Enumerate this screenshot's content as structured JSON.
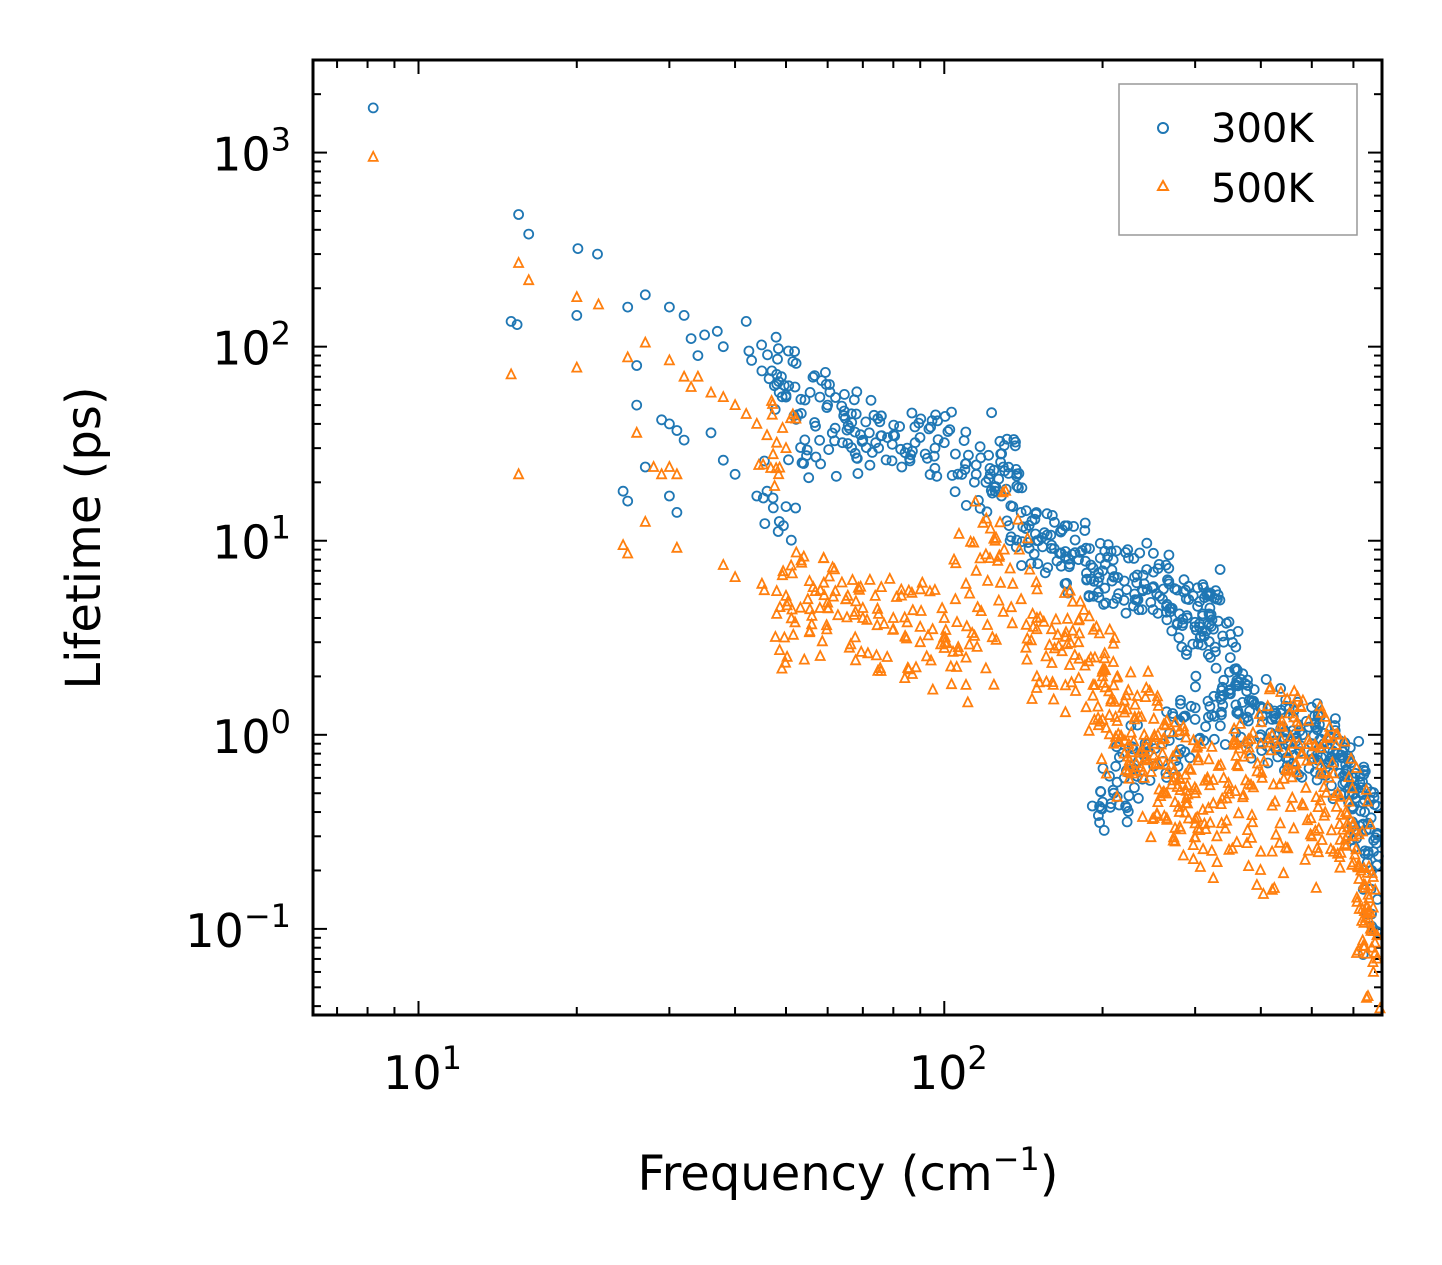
{
  "chart_data": {
    "type": "scatter",
    "title": "",
    "xlabel": "Frequency (cm",
    "xlabel_sup": "−1",
    "xlabel_suffix": ")",
    "ylabel": "Lifetime (ps)",
    "xscale": "log",
    "yscale": "log",
    "xlim": [
      6.3,
      680
    ],
    "ylim": [
      0.036,
      3000
    ],
    "x_ticks": [
      {
        "base": "10",
        "exp": "1",
        "value": 10
      },
      {
        "base": "10",
        "exp": "2",
        "value": 100
      }
    ],
    "y_ticks": [
      {
        "base": "10",
        "exp": "3",
        "value": 1000
      },
      {
        "base": "10",
        "exp": "2",
        "value": 100
      },
      {
        "base": "10",
        "exp": "1",
        "value": 10
      },
      {
        "base": "10",
        "exp": "0",
        "value": 1
      },
      {
        "base": "10",
        "exp": "−1",
        "value": 0.1
      }
    ],
    "legend_position": "top-right",
    "series": [
      {
        "name": "300K",
        "marker": "circle",
        "color": "#1f77b4",
        "x": [
          8.2,
          15.5,
          16.2,
          15.0,
          15.4,
          20.1,
          21.9,
          20.0,
          27.0,
          25.0,
          26.0,
          30.0,
          32.0,
          33.0,
          34.0,
          35.0,
          37.0,
          38.0,
          42.0,
          42.5,
          43.0,
          45.0,
          47.0,
          48.0,
          49.0,
          50.0,
          52.0,
          26.0,
          29.0,
          30.0,
          31.0,
          32.0,
          24.5,
          25.0,
          27.0,
          30.0,
          31.0,
          36.0,
          38.0,
          40.0,
          44.0,
          46.0,
          50.0,
          54.0,
          57.0,
          58.0,
          60.0,
          62.0,
          64.0,
          66.0,
          68.0,
          70.0,
          72.0,
          75.0,
          78.0,
          80.0,
          85.0,
          88.0,
          92.0,
          96.0,
          100.0,
          105.0,
          110.0,
          115.0,
          120.0,
          125.0,
          128.0,
          130.0,
          128.5,
          129.5,
          135.0,
          140.0,
          145.0,
          150.0,
          155.0,
          160.0,
          170.0,
          175.0,
          180.0,
          190.0,
          200.0,
          210.0,
          220.0,
          230.0,
          240.0,
          250.0,
          260.0,
          270.0,
          280.0,
          290.0,
          300.0,
          310.0,
          320.0,
          330.0,
          340.0,
          350.0,
          360.0,
          380.0,
          400.0,
          420.0,
          440.0,
          460.0,
          480.0,
          500.0,
          520.0,
          540.0,
          560.0,
          580.0,
          600.0,
          620.0,
          630.0,
          640.0,
          650.0,
          655.0,
          200.0,
          210.0,
          220.0,
          230.0,
          240.0,
          260.0,
          280.0,
          300.0,
          320.0,
          340.0,
          360.0,
          400.0,
          450.0,
          500.0,
          550.0,
          600.0,
          640.0
        ],
        "y": [
          1700,
          480,
          380,
          135,
          130,
          320,
          300,
          145,
          185,
          160,
          80,
          160,
          145,
          110,
          90,
          115,
          120,
          100,
          135,
          95,
          85,
          75,
          75,
          72,
          70,
          55,
          62,
          50,
          42,
          40,
          37,
          33,
          18,
          16,
          24,
          17,
          14,
          36,
          26,
          22,
          17,
          18,
          15,
          25,
          27,
          55,
          50,
          38,
          32,
          38,
          45,
          33,
          36,
          30,
          34,
          35,
          30,
          32,
          28,
          30,
          32,
          28,
          25,
          22,
          20,
          18,
          28,
          31,
          17,
          24,
          15,
          14,
          12,
          10,
          11,
          9.5,
          8.8,
          8.5,
          8,
          7.5,
          7,
          6.5,
          6.2,
          6.5,
          6,
          5.8,
          5,
          4.5,
          4.2,
          4,
          3.8,
          4.2,
          4.5,
          5,
          3,
          2.5,
          1.8,
          1.5,
          1.4,
          1.2,
          1.1,
          1.05,
          1.0,
          0.9,
          0.95,
          0.85,
          0.8,
          0.7,
          0.6,
          0.5,
          0.4,
          0.35,
          0.2,
          0.1,
          0.45,
          0.5,
          0.6,
          0.7,
          0.8,
          0.9,
          1.0,
          1.2,
          1.4,
          1.6,
          1.3,
          1.0,
          0.9,
          0.8,
          0.7,
          0.5,
          0.25
        ]
      },
      {
        "name": "500K",
        "marker": "triangle",
        "color": "#ff7f0e",
        "x": [
          8.2,
          15.5,
          16.2,
          15.0,
          15.5,
          20.0,
          22.0,
          20.0,
          25.0,
          27.0,
          30.0,
          32.0,
          33.0,
          34.0,
          36.0,
          38.0,
          40.0,
          42.0,
          44.0,
          46.0,
          48.0,
          50.0,
          26.0,
          28.0,
          29.0,
          30.0,
          31.0,
          24.5,
          25.0,
          27.0,
          31.0,
          38.0,
          40.0,
          45.0,
          48.0,
          50.0,
          55.0,
          58.0,
          60.0,
          65.0,
          70.0,
          75.0,
          80.0,
          85.0,
          90.0,
          95.0,
          100.0,
          105.0,
          110.0,
          115.0,
          120.0,
          125.0,
          130.0,
          135.0,
          140.0,
          150.0,
          160.0,
          170.0,
          180.0,
          190.0,
          200.0,
          210.0,
          220.0,
          230.0,
          240.0,
          250.0,
          260.0,
          270.0,
          280.0,
          290.0,
          300.0,
          320.0,
          340.0,
          360.0,
          380.0,
          400.0,
          420.0,
          440.0,
          460.0,
          480.0,
          500.0,
          520.0,
          540.0,
          560.0,
          580.0,
          600.0,
          620.0,
          640.0,
          650.0,
          655.0,
          48.0,
          52.0,
          56.0,
          60.0,
          65.0,
          70.0,
          80.0,
          90.0,
          100.0,
          110.0,
          120.0,
          150.0,
          170.0,
          200.0,
          210.0,
          220.0,
          240.0,
          260.0,
          280.0,
          300.0,
          330.0,
          360.0,
          400.0,
          450.0,
          500.0,
          550.0,
          600.0,
          640.0,
          650.0
        ],
        "y": [
          950,
          270,
          220,
          72,
          22,
          180,
          165,
          78,
          88,
          105,
          85,
          70,
          62,
          70,
          58,
          55,
          50,
          45,
          40,
          35,
          32,
          30,
          36,
          24,
          22,
          24,
          22,
          9.5,
          8.6,
          12.5,
          9.2,
          7.5,
          6.5,
          6,
          5.5,
          5.2,
          5,
          4.5,
          4.8,
          5,
          4.5,
          4.2,
          4,
          3.8,
          3.6,
          3.5,
          4,
          5,
          6,
          7,
          8.5,
          10,
          9,
          6,
          5,
          4,
          3.5,
          3.2,
          3,
          2.5,
          2,
          1.8,
          1.5,
          1.2,
          1,
          0.9,
          0.8,
          0.7,
          0.6,
          0.55,
          0.5,
          0.55,
          0.6,
          0.7,
          0.8,
          0.9,
          1.0,
          1.1,
          0.9,
          0.8,
          0.75,
          0.7,
          0.6,
          0.5,
          0.4,
          0.3,
          0.2,
          0.12,
          0.08,
          0.06,
          4.2,
          3.8,
          4.1,
          4.5,
          5,
          4,
          3.5,
          3,
          2.8,
          2.5,
          2.2,
          2,
          1.8,
          1.2,
          0.9,
          0.8,
          0.6,
          0.5,
          0.4,
          0.35,
          0.3,
          0.28,
          0.25,
          0.26,
          0.3,
          0.25,
          0.22,
          0.15,
          0.1
        ]
      }
    ]
  }
}
